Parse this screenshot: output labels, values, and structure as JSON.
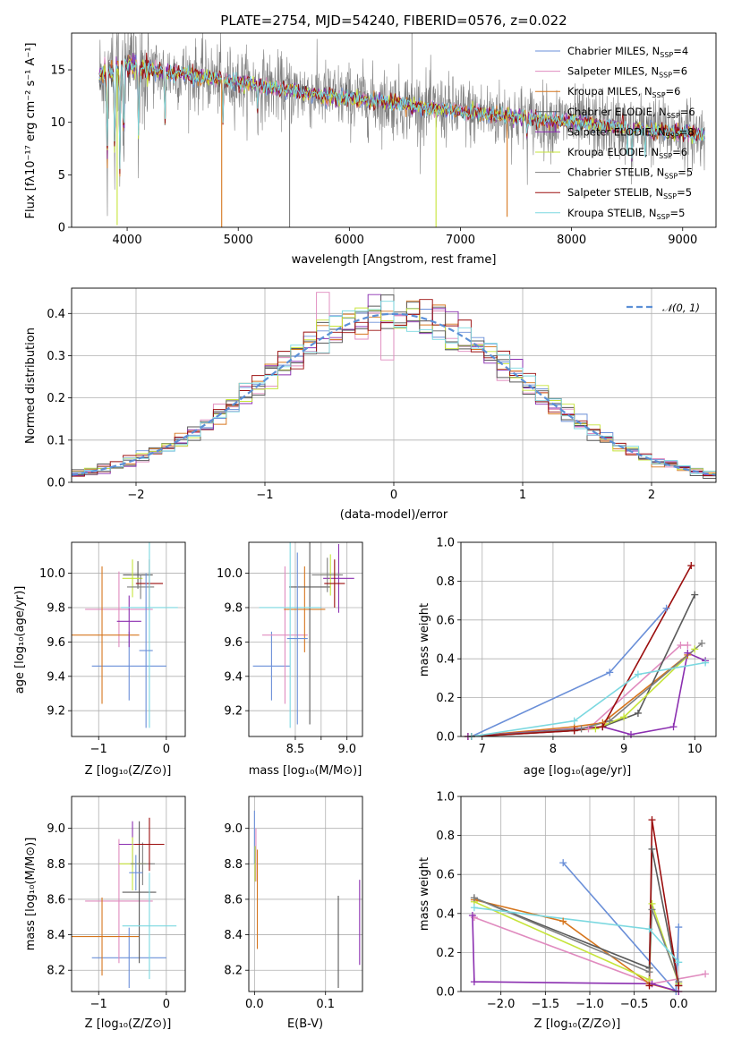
{
  "colors": [
    "#6a8fd8",
    "#e08bbf",
    "#d6761e",
    "#5a5a5a",
    "#8b2fb0",
    "#c6e43a",
    "#7f7f7f",
    "#9b0e0e",
    "#7bd8e0"
  ],
  "norm_color": "#5b8fd6",
  "chart_data": [
    {
      "id": "spectrum",
      "type": "line",
      "title": "PLATE=2754, MJD=54240, FIBERID=0576, z=0.022",
      "xlabel": "wavelength [Angstrom, rest frame]",
      "ylabel": "Flux [fλ10⁻¹⁷ erg cm⁻² s⁻¹ A⁻¹]",
      "xlim": [
        3500,
        9300
      ],
      "ylim": [
        0,
        18.5
      ],
      "xticks": [
        4000,
        5000,
        6000,
        7000,
        8000,
        9000
      ],
      "yticks": [
        0,
        5,
        10,
        15
      ],
      "grid": false,
      "legend_position": "top-right",
      "series": [
        {
          "label": "Chabrier MILES, N",
          "sub": "SSP",
          "suffix": "=4"
        },
        {
          "label": "Salpeter MILES, N",
          "sub": "SSP",
          "suffix": "=6"
        },
        {
          "label": "Kroupa MILES, N",
          "sub": "SSP",
          "suffix": "=6"
        },
        {
          "label": "Chabrier ELODIE, N",
          "sub": "SSP",
          "suffix": "=6"
        },
        {
          "label": "Salpeter ELODIE, N",
          "sub": "SSP",
          "suffix": "=8"
        },
        {
          "label": "Kroupa ELODIE, N",
          "sub": "SSP",
          "suffix": "=6"
        },
        {
          "label": "Chabrier STELIB, N",
          "sub": "SSP",
          "suffix": "=5"
        },
        {
          "label": "Salpeter STELIB, N",
          "sub": "SSP",
          "suffix": "=5"
        },
        {
          "label": "Kroupa STELIB, N",
          "sub": "SSP",
          "suffix": "=5"
        }
      ],
      "continuum": [
        [
          3750,
          14.5
        ],
        [
          4000,
          15.5
        ],
        [
          4200,
          15.0
        ],
        [
          4500,
          14.6
        ],
        [
          5000,
          13.8
        ],
        [
          5500,
          13.0
        ],
        [
          6000,
          12.3
        ],
        [
          6500,
          11.7
        ],
        [
          7000,
          11.0
        ],
        [
          7500,
          10.5
        ],
        [
          8000,
          10.0
        ],
        [
          8500,
          9.5
        ],
        [
          9000,
          9.0
        ],
        [
          9200,
          8.8
        ]
      ],
      "absorption_lines": [
        [
          3820,
          6.5
        ],
        [
          3889,
          5.8
        ],
        [
          3934,
          5.5
        ],
        [
          3970,
          7.0
        ],
        [
          4102,
          9.0
        ],
        [
          4340,
          9.5
        ],
        [
          4861,
          10.0
        ],
        [
          5175,
          11.0
        ],
        [
          5890,
          11.5
        ],
        [
          6563,
          11.2
        ],
        [
          7600,
          8.5
        ],
        [
          8500,
          7.0
        ],
        [
          8542,
          6.5
        ],
        [
          8662,
          7.5
        ]
      ],
      "spikes": [
        [
          3910,
          0.2
        ],
        [
          4851,
          0
        ],
        [
          5462,
          0
        ],
        [
          6780,
          0
        ],
        [
          7420,
          1.0
        ]
      ]
    },
    {
      "id": "residual-hist",
      "type": "step",
      "xlabel": "(data-model)/error",
      "ylabel": "Normed distribution",
      "xlim": [
        -2.5,
        2.5
      ],
      "ylim": [
        0,
        0.46
      ],
      "xticks": [
        -2,
        -1,
        0,
        1,
        2
      ],
      "yticks": [
        0,
        0.1,
        0.2,
        0.3,
        0.4
      ],
      "grid": true,
      "legend_position": "top-right",
      "normal_label": "𝒩(0, 1)",
      "bin_width": 0.1,
      "bin_start": -2.5
    },
    {
      "id": "age-vs-Z",
      "type": "errorbar",
      "xlabel": "Z [log₁₀(Z/Z⊙)]",
      "ylabel": "age  [log₁₀(age/yr)]",
      "xlim": [
        -1.4,
        0.28
      ],
      "ylim": [
        9.05,
        10.18
      ],
      "xticks": [
        -1,
        0
      ],
      "xtick_labels": [
        "−1",
        "0"
      ],
      "yticks": [
        9.2,
        9.4,
        9.6,
        9.8,
        10.0
      ],
      "grid": true,
      "points": [
        {
          "x": -0.55,
          "xe": 0.55,
          "y": 9.46,
          "ye": 0.2
        },
        {
          "x": -0.7,
          "xe": 0.5,
          "y": 9.79,
          "ye": 0.22
        },
        {
          "x": -0.95,
          "xe": 0.55,
          "y": 9.64,
          "ye": 0.4
        },
        {
          "x": -0.42,
          "xe": 0.22,
          "y": 9.99,
          "ye": 0.08
        },
        {
          "x": -0.55,
          "xe": 0.18,
          "y": 9.72,
          "ye": 0.15
        },
        {
          "x": -0.5,
          "xe": 0.15,
          "y": 9.97,
          "ye": 0.11
        },
        {
          "x": -0.38,
          "xe": 0.2,
          "y": 9.92,
          "ye": 0.07
        },
        {
          "x": -0.25,
          "xe": 0.2,
          "y": 9.94,
          "ye": 0.14
        },
        {
          "x": -0.25,
          "xe": 0.42,
          "y": 9.8,
          "ye": 0.7
        },
        {
          "x": -0.3,
          "xe": 0.1,
          "y": 9.55,
          "ye": 0.45
        }
      ]
    },
    {
      "id": "age-vs-mass",
      "type": "errorbar",
      "xlabel": "mass [log₁₀(M/M⊙)]",
      "ylabel": "",
      "xlim": [
        8.05,
        9.15
      ],
      "ylim": [
        9.05,
        10.18
      ],
      "xticks": [
        8.5,
        8.75,
        9.0
      ],
      "xtick_labels": [
        "8.5",
        "",
        "9.0"
      ],
      "yticks": [
        9.2,
        9.4,
        9.6,
        9.8,
        10.0
      ],
      "grid": true,
      "points": [
        {
          "x": 8.27,
          "xe": 0.18,
          "y": 9.46,
          "ye": 0.2
        },
        {
          "x": 8.4,
          "xe": 0.22,
          "y": 9.64,
          "ye": 0.4
        },
        {
          "x": 8.59,
          "xe": 0.2,
          "y": 9.79,
          "ye": 0.25
        },
        {
          "x": 8.64,
          "xe": 0.2,
          "y": 9.92,
          "ye": 0.8
        },
        {
          "x": 8.92,
          "xe": 0.15,
          "y": 9.97,
          "ye": 0.2
        },
        {
          "x": 8.84,
          "xe": 0.1,
          "y": 9.99,
          "ye": 0.12
        },
        {
          "x": 8.81,
          "xe": 0.15,
          "y": 9.99,
          "ye": 0.1
        },
        {
          "x": 8.88,
          "xe": 0.1,
          "y": 9.94,
          "ye": 0.14
        },
        {
          "x": 8.45,
          "xe": 0.3,
          "y": 9.8,
          "ye": 0.7
        },
        {
          "x": 8.52,
          "xe": 0.1,
          "y": 9.62,
          "ye": 0.5
        }
      ]
    },
    {
      "id": "massweight-vs-age",
      "type": "line",
      "xlabel": "age  [log₁₀(age/yr)]",
      "ylabel": "mass weight",
      "xlim": [
        6.7,
        10.3
      ],
      "ylim": [
        0,
        1.0
      ],
      "xticks": [
        7,
        8,
        9,
        10
      ],
      "yticks": [
        0,
        0.2,
        0.4,
        0.6,
        0.8,
        1.0
      ],
      "grid": true,
      "series": [
        {
          "points": [
            [
              6.85,
              0.0
            ],
            [
              8.8,
              0.33
            ],
            [
              9.6,
              0.66
            ]
          ]
        },
        {
          "points": [
            [
              6.8,
              0.0
            ],
            [
              8.5,
              0.04
            ],
            [
              9.8,
              0.47
            ],
            [
              9.9,
              0.47
            ]
          ]
        },
        {
          "points": [
            [
              6.8,
              0.0
            ],
            [
              8.3,
              0.05
            ],
            [
              8.7,
              0.07
            ],
            [
              9.9,
              0.42
            ]
          ]
        },
        {
          "points": [
            [
              6.85,
              0.0
            ],
            [
              8.3,
              0.03
            ],
            [
              8.7,
              0.05
            ],
            [
              9.2,
              0.12
            ],
            [
              10.0,
              0.73
            ]
          ]
        },
        {
          "points": [
            [
              6.8,
              0.0
            ],
            [
              8.7,
              0.05
            ],
            [
              9.1,
              0.01
            ],
            [
              9.7,
              0.05
            ],
            [
              9.9,
              0.43
            ],
            [
              10.15,
              0.39
            ]
          ]
        },
        {
          "points": [
            [
              6.85,
              0.0
            ],
            [
              8.6,
              0.04
            ],
            [
              9.0,
              0.1
            ],
            [
              10.0,
              0.45
            ]
          ]
        },
        {
          "points": [
            [
              6.85,
              0.0
            ],
            [
              8.4,
              0.04
            ],
            [
              8.8,
              0.08
            ],
            [
              10.1,
              0.48
            ]
          ]
        },
        {
          "points": [
            [
              6.85,
              0.0
            ],
            [
              8.3,
              0.03
            ],
            [
              8.7,
              0.05
            ],
            [
              9.95,
              0.88
            ]
          ]
        },
        {
          "points": [
            [
              6.85,
              0.0
            ],
            [
              8.3,
              0.08
            ],
            [
              9.2,
              0.32
            ],
            [
              10.15,
              0.38
            ]
          ]
        }
      ]
    },
    {
      "id": "mass-vs-Z",
      "type": "errorbar",
      "xlabel": "Z [log₁₀(Z/Z⊙)]",
      "ylabel": "mass [log₁₀(M/M⊙)]",
      "xlim": [
        -1.4,
        0.28
      ],
      "ylim": [
        8.08,
        9.18
      ],
      "xticks": [
        -1,
        0
      ],
      "xtick_labels": [
        "−1",
        "0"
      ],
      "yticks": [
        8.2,
        8.4,
        8.6,
        8.8,
        9.0
      ],
      "grid": true,
      "points": [
        {
          "x": -0.55,
          "xe": 0.55,
          "y": 8.27,
          "ye": 0.17
        },
        {
          "x": -0.7,
          "xe": 0.5,
          "y": 8.59,
          "ye": 0.35
        },
        {
          "x": -0.95,
          "xe": 0.55,
          "y": 8.39,
          "ye": 0.22
        },
        {
          "x": -0.4,
          "xe": 0.25,
          "y": 8.64,
          "ye": 0.4
        },
        {
          "x": -0.5,
          "xe": 0.2,
          "y": 8.91,
          "ye": 0.13
        },
        {
          "x": -0.5,
          "xe": 0.2,
          "y": 8.8,
          "ye": 0.15
        },
        {
          "x": -0.35,
          "xe": 0.18,
          "y": 8.8,
          "ye": 0.12
        },
        {
          "x": -0.25,
          "xe": 0.22,
          "y": 8.91,
          "ye": 0.15
        },
        {
          "x": -0.25,
          "xe": 0.4,
          "y": 8.45,
          "ye": 0.3
        },
        {
          "x": -0.45,
          "xe": 0.1,
          "y": 8.75,
          "ye": 0.1
        }
      ]
    },
    {
      "id": "mass-vs-ebv",
      "type": "errorbar",
      "xlabel": "E(B-V)",
      "ylabel": "",
      "xlim": [
        -0.008,
        0.152
      ],
      "ylim": [
        8.08,
        9.18
      ],
      "xticks": [
        0,
        0.1
      ],
      "xtick_labels": [
        "0.0",
        "0.1"
      ],
      "yticks": [
        8.2,
        8.4,
        8.6,
        8.8,
        9.0
      ],
      "grid": true,
      "points": [
        {
          "x": 0.0,
          "xe": 0,
          "y": 8.95,
          "ye": 0.15
        },
        {
          "x": 0.002,
          "xe": 0,
          "y": 8.85,
          "ye": 0.15
        },
        {
          "x": 0.004,
          "xe": 0,
          "y": 8.6,
          "ye": 0.28
        },
        {
          "x": 0.118,
          "xe": 0,
          "y": 8.36,
          "ye": 0.26
        },
        {
          "x": 0.148,
          "xe": 0,
          "y": 8.47,
          "ye": 0.24
        },
        {
          "x": 0.001,
          "xe": 0,
          "y": 8.8,
          "ye": 0.1
        }
      ]
    },
    {
      "id": "massweight-vs-Z",
      "type": "line",
      "xlabel": "Z [log₁₀(Z/Z⊙)]",
      "ylabel": "mass weight",
      "xlim": [
        -2.45,
        0.42
      ],
      "ylim": [
        0,
        1.0
      ],
      "xticks": [
        -2.0,
        -1.5,
        -1.0,
        -0.5,
        0.0
      ],
      "xtick_labels": [
        "−2.0",
        "−1.5",
        "−1.0",
        "−0.5",
        "0.0"
      ],
      "yticks": [
        0,
        0.2,
        0.4,
        0.6,
        0.8,
        1.0
      ],
      "grid": true,
      "series": [
        {
          "points": [
            [
              -1.3,
              0.66
            ],
            [
              -0.03,
              0.0
            ],
            [
              0.0,
              0.33
            ]
          ]
        },
        {
          "points": [
            [
              -2.3,
              0.38
            ],
            [
              -0.3,
              0.04
            ],
            [
              0.3,
              0.09
            ]
          ]
        },
        {
          "points": [
            [
              -2.3,
              0.47
            ],
            [
              -1.3,
              0.36
            ],
            [
              -0.33,
              0.04
            ],
            [
              0.0,
              0.0
            ]
          ]
        },
        {
          "points": [
            [
              -2.3,
              0.48
            ],
            [
              -0.33,
              0.12
            ],
            [
              -0.3,
              0.73
            ],
            [
              0.0,
              0.03
            ]
          ]
        },
        {
          "points": [
            [
              -2.32,
              0.39
            ],
            [
              -2.3,
              0.05
            ],
            [
              -0.3,
              0.04
            ],
            [
              0.0,
              0.0
            ]
          ]
        },
        {
          "points": [
            [
              -2.3,
              0.46
            ],
            [
              -0.33,
              0.06
            ],
            [
              -0.3,
              0.45
            ],
            [
              0.0,
              0.04
            ]
          ]
        },
        {
          "points": [
            [
              -2.3,
              0.48
            ],
            [
              -0.33,
              0.1
            ],
            [
              -0.3,
              0.42
            ],
            [
              0.0,
              0.05
            ]
          ]
        },
        {
          "points": [
            [
              -0.33,
              0.03
            ],
            [
              -0.3,
              0.88
            ],
            [
              0.0,
              0.03
            ]
          ]
        },
        {
          "points": [
            [
              -2.3,
              0.43
            ],
            [
              -0.33,
              0.32
            ],
            [
              0.0,
              0.15
            ]
          ]
        }
      ]
    }
  ]
}
